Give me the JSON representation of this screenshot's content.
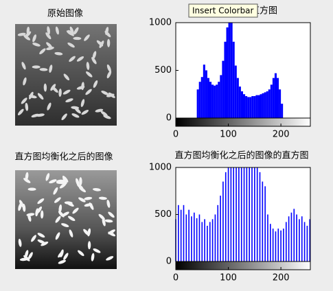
{
  "chart_data": [
    {
      "type": "image",
      "title": "原始图像"
    },
    {
      "type": "histogram",
      "title": "原始图像的直方图",
      "color": "#0000ff",
      "bins": [
        0,
        4,
        8,
        12,
        16,
        20,
        24,
        28,
        32,
        36,
        40,
        44,
        48,
        52,
        56,
        60,
        64,
        68,
        72,
        76,
        80,
        84,
        88,
        92,
        96,
        100,
        104,
        108,
        112,
        116,
        120,
        124,
        128,
        132,
        136,
        140,
        144,
        148,
        152,
        156,
        160,
        164,
        168,
        172,
        176,
        180,
        184,
        188,
        192,
        196,
        200,
        204,
        208,
        212,
        216,
        220,
        224,
        228,
        232,
        236,
        240,
        244,
        248,
        252,
        256
      ],
      "values": [
        0,
        0,
        0,
        0,
        0,
        0,
        0,
        0,
        0,
        0,
        300,
        380,
        430,
        560,
        500,
        420,
        380,
        350,
        340,
        350,
        380,
        450,
        600,
        800,
        950,
        1000,
        1000,
        800,
        550,
        420,
        330,
        280,
        250,
        230,
        220,
        220,
        230,
        230,
        240,
        240,
        250,
        260,
        270,
        280,
        300,
        350,
        420,
        470,
        420,
        300,
        150,
        0,
        0,
        0,
        0,
        0,
        0,
        0,
        0,
        0,
        0,
        0,
        0,
        0
      ],
      "xlim": [
        0,
        256
      ],
      "xticks": [
        0,
        100,
        200
      ],
      "ylim": [
        0,
        1000
      ],
      "yticks": [
        0,
        500,
        1000
      ]
    },
    {
      "type": "image",
      "title": "直方图均衡化之后的图像"
    },
    {
      "type": "bar",
      "title": "直方图均衡化之后的图像的直方图",
      "color": "#0000ff",
      "x": [
        0,
        5,
        10,
        15,
        20,
        25,
        30,
        35,
        40,
        45,
        50,
        55,
        60,
        65,
        70,
        75,
        80,
        85,
        90,
        95,
        100,
        105,
        110,
        115,
        120,
        125,
        130,
        135,
        140,
        145,
        150,
        155,
        160,
        165,
        170,
        175,
        180,
        185,
        190,
        195,
        200,
        205,
        210,
        215,
        220,
        225,
        230,
        235,
        240,
        245,
        250,
        255
      ],
      "values": [
        450,
        600,
        550,
        600,
        500,
        550,
        480,
        520,
        460,
        500,
        420,
        450,
        380,
        420,
        450,
        500,
        600,
        700,
        850,
        950,
        1000,
        1000,
        1000,
        1000,
        1000,
        1000,
        1000,
        1000,
        1000,
        1000,
        1000,
        1000,
        950,
        850,
        800,
        500,
        400,
        350,
        320,
        350,
        330,
        350,
        420,
        480,
        520,
        560,
        500,
        450,
        480,
        420,
        380,
        450
      ],
      "xlim": [
        0,
        256
      ],
      "xticks": [
        0,
        100,
        200
      ],
      "ylim": [
        0,
        1000
      ],
      "yticks": [
        0,
        500,
        1000
      ]
    }
  ],
  "tooltip": "Insert Colorbar"
}
